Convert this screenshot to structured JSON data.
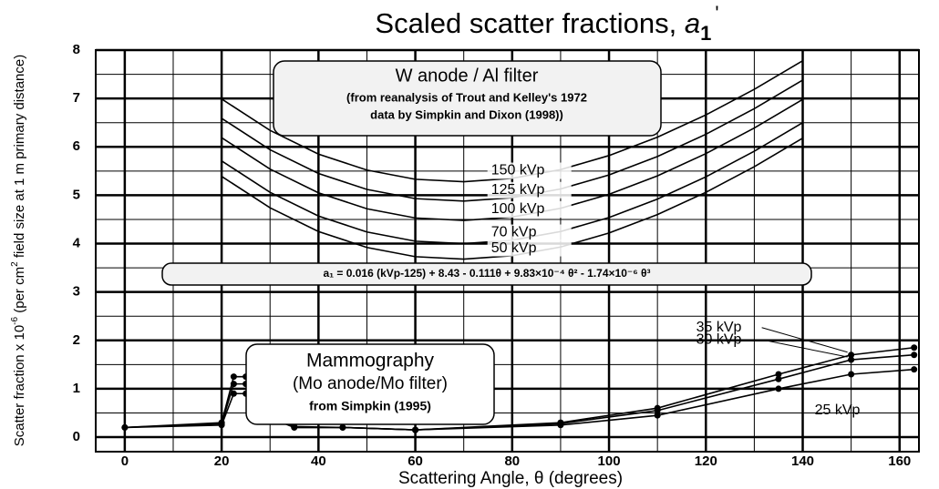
{
  "chart_data": {
    "type": "line",
    "title_main": "Scaled scatter fractions,",
    "title_symbol": "a",
    "title_subscript": "1",
    "title_prime": "'",
    "ylabel": [
      "Scatter fraction x 10",
      "-6",
      " (per cm",
      "2",
      " field size at 1 m primary distance)"
    ],
    "xlabel": "Scattering Angle, θ (degrees)",
    "xlim": [
      -6,
      164
    ],
    "ylim": [
      -0.3,
      8
    ],
    "xticks": [
      0,
      20,
      40,
      60,
      80,
      100,
      120,
      140,
      160
    ],
    "yticks": [
      0,
      1,
      2,
      3,
      4,
      5,
      6,
      7,
      8
    ],
    "xminorticks": [
      10,
      30,
      50,
      70,
      90,
      110,
      130,
      150
    ],
    "yminorticks": [
      0.5,
      1.5,
      2.5,
      3.5,
      4.5,
      5.5,
      6.5,
      7.5
    ],
    "grid": true,
    "w_box": [
      "W anode / Al filter",
      "(from reanalysis of Trout and Kelley's 1972",
      "data by Simpkin and Dixon (1998))"
    ],
    "formula": "a₁ = 0.016 (kVp-125) + 8.43 - 0.111θ + 9.83×10⁻⁴ θ² - 1.74×10⁻⁶ θ³",
    "mammo_box": [
      "Mammography",
      "(Mo anode/Mo filter)",
      "from Simpkin (1995)"
    ],
    "series": [
      {
        "name": "150 kVp",
        "color": "#000000",
        "markers": false,
        "x": [
          20,
          30,
          40,
          50,
          60,
          70,
          80,
          90,
          100,
          110,
          120,
          130,
          140
        ],
        "values": [
          6.99,
          6.34,
          5.85,
          5.52,
          5.33,
          5.28,
          5.35,
          5.53,
          5.82,
          6.2,
          6.66,
          7.19,
          7.78
        ]
      },
      {
        "name": "125 kVp",
        "color": "#000000",
        "markers": false,
        "x": [
          20,
          30,
          40,
          50,
          60,
          70,
          80,
          90,
          100,
          110,
          120,
          130,
          140
        ],
        "values": [
          6.59,
          5.94,
          5.45,
          5.12,
          4.93,
          4.88,
          4.95,
          5.13,
          5.42,
          5.8,
          6.26,
          6.79,
          7.38
        ]
      },
      {
        "name": "100 kVp",
        "color": "#000000",
        "markers": false,
        "x": [
          20,
          30,
          40,
          50,
          60,
          70,
          80,
          90,
          100,
          110,
          120,
          130,
          140
        ],
        "values": [
          6.19,
          5.54,
          5.05,
          4.72,
          4.53,
          4.48,
          4.55,
          4.73,
          5.02,
          5.4,
          5.86,
          6.39,
          6.98
        ]
      },
      {
        "name": "70 kVp",
        "color": "#000000",
        "markers": false,
        "x": [
          20,
          30,
          40,
          50,
          60,
          70,
          80,
          90,
          100,
          110,
          120,
          130,
          140
        ],
        "values": [
          5.71,
          5.06,
          4.57,
          4.24,
          4.05,
          4.0,
          4.07,
          4.25,
          4.54,
          4.92,
          5.38,
          5.91,
          6.5
        ]
      },
      {
        "name": "50 kVp",
        "color": "#000000",
        "markers": false,
        "x": [
          20,
          30,
          40,
          50,
          60,
          70,
          80,
          90,
          100,
          110,
          120,
          130,
          140
        ],
        "values": [
          5.39,
          4.74,
          4.25,
          3.92,
          3.73,
          3.68,
          3.75,
          3.93,
          4.22,
          4.6,
          5.06,
          5.59,
          6.18
        ]
      },
      {
        "name": "35 kVp",
        "color": "#000000",
        "markers": true,
        "x": [
          0,
          20,
          22.5,
          25,
          27.5,
          30,
          35,
          45,
          60,
          90,
          110,
          135,
          150,
          163
        ],
        "values": [
          0.2,
          0.3,
          1.25,
          1.25,
          0.95,
          0.5,
          0.22,
          0.2,
          0.15,
          0.3,
          0.6,
          1.3,
          1.7,
          1.85
        ]
      },
      {
        "name": "30 kVp",
        "color": "#000000",
        "markers": true,
        "x": [
          0,
          20,
          22.5,
          25,
          27.5,
          30,
          35,
          45,
          60,
          90,
          110,
          135,
          150,
          163
        ],
        "values": [
          0.2,
          0.28,
          1.1,
          1.1,
          0.85,
          0.45,
          0.2,
          0.2,
          0.15,
          0.28,
          0.55,
          1.2,
          1.6,
          1.7
        ]
      },
      {
        "name": "25 kVp",
        "color": "#000000",
        "markers": true,
        "x": [
          0,
          20,
          22.5,
          25,
          27.5,
          30,
          35,
          45,
          60,
          90,
          110,
          135,
          150,
          163
        ],
        "values": [
          0.2,
          0.25,
          0.9,
          0.9,
          0.7,
          0.4,
          0.2,
          0.2,
          0.15,
          0.25,
          0.45,
          1.0,
          1.3,
          1.4
        ]
      }
    ]
  }
}
